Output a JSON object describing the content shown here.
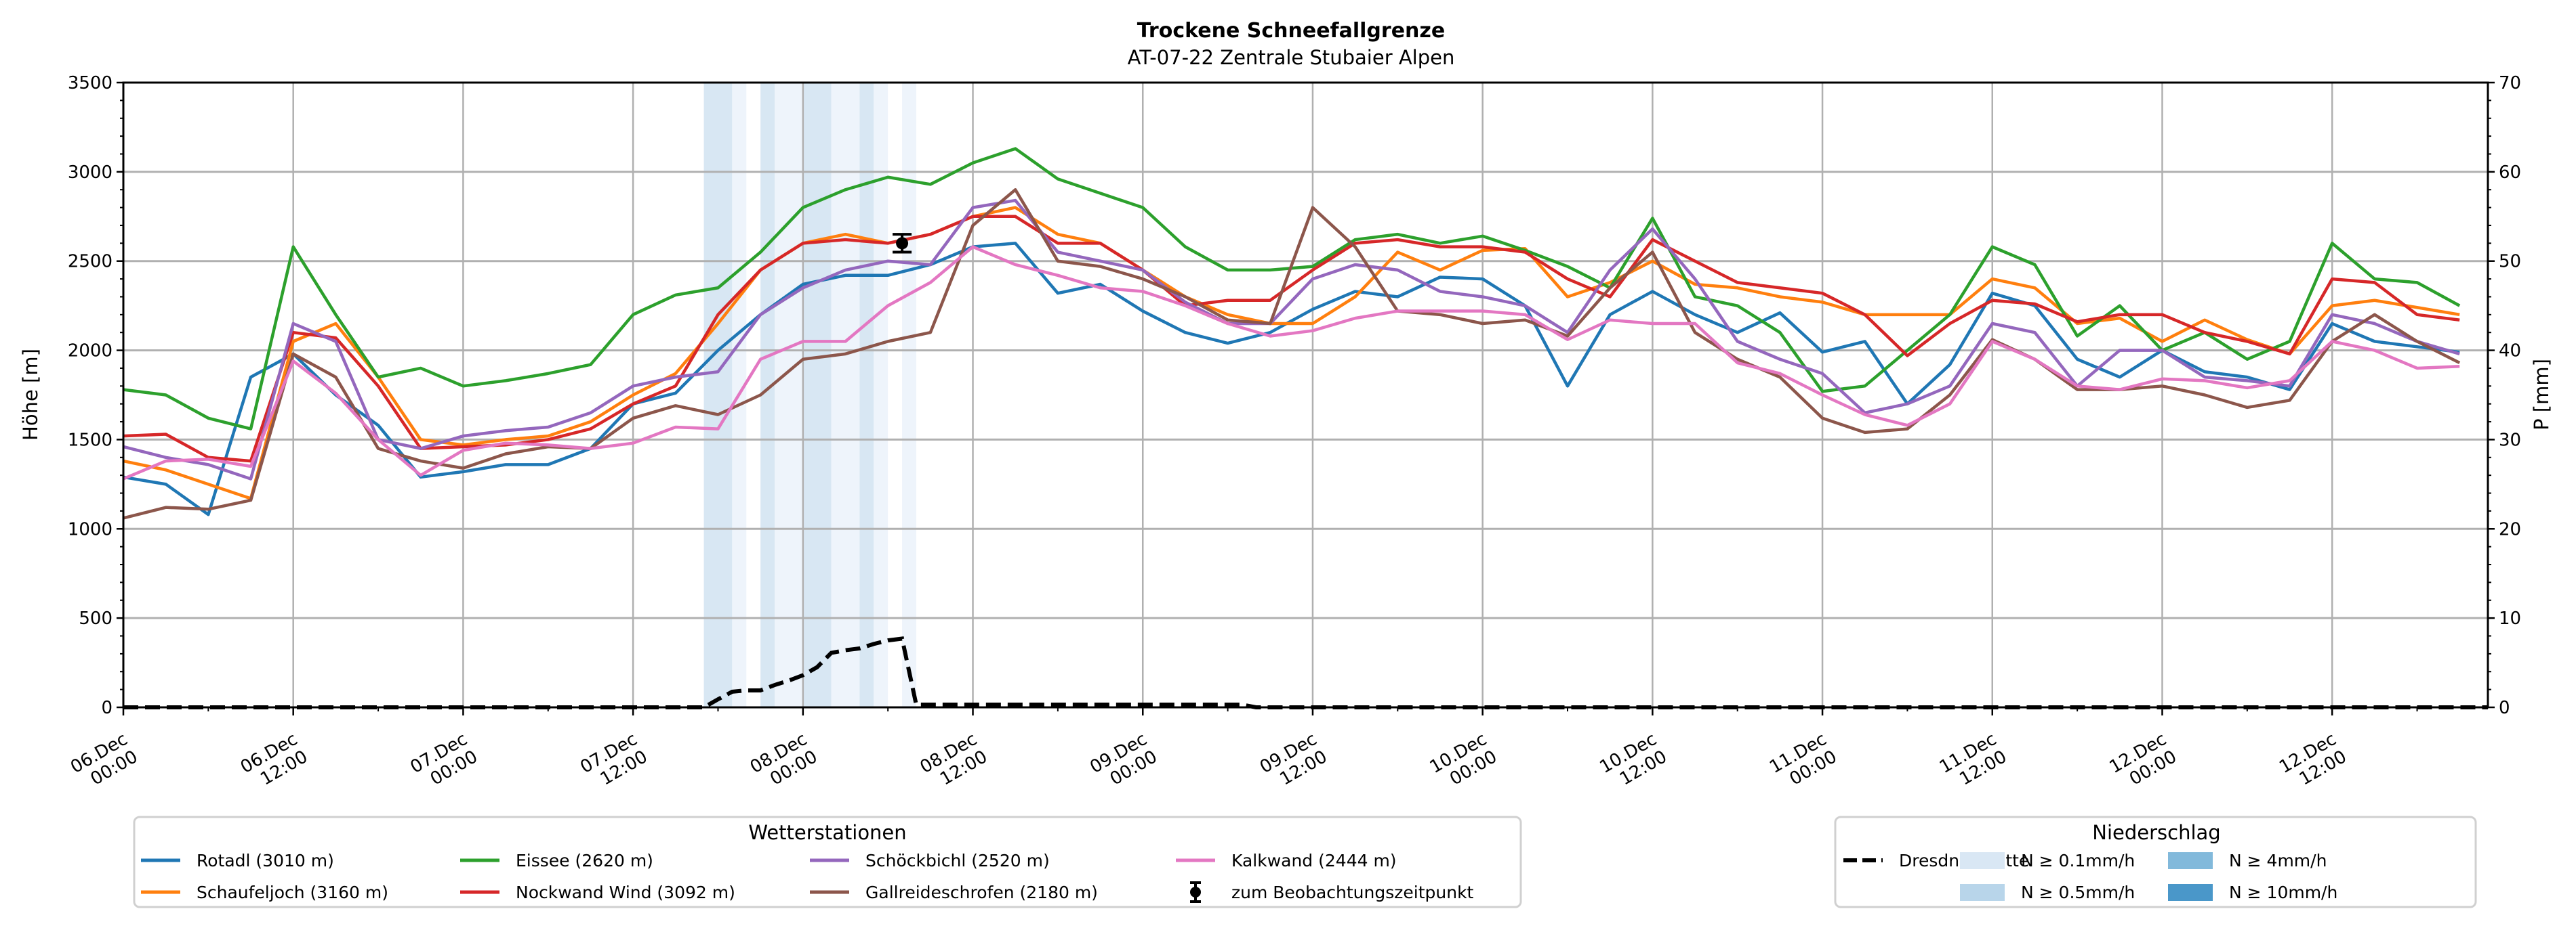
{
  "chart_data": {
    "type": "line",
    "title": "Trockene Schneefallgrenze",
    "subtitle": "AT-07-22 Zentrale Stubaier Alpen",
    "xlabel": "",
    "ylabel": "Höhe [m]",
    "y2label": "P [mm]",
    "ylim": [
      0,
      3500
    ],
    "y2lim": [
      0,
      70
    ],
    "yticks": [
      0,
      500,
      1000,
      1500,
      2000,
      2500,
      3000,
      3500
    ],
    "y2ticks": [
      0,
      10,
      20,
      30,
      40,
      50,
      60,
      70
    ],
    "grid": true,
    "x_unit": "hours since 06.Dec 00:00",
    "xlim": [
      0,
      167
    ],
    "x_step_hours": 3,
    "xticks": [
      {
        "hour": 0,
        "date": "06.Dec",
        "time": "00:00"
      },
      {
        "hour": 12,
        "date": "06.Dec",
        "time": "12:00"
      },
      {
        "hour": 24,
        "date": "07.Dec",
        "time": "00:00"
      },
      {
        "hour": 36,
        "date": "07.Dec",
        "time": "12:00"
      },
      {
        "hour": 48,
        "date": "08.Dec",
        "time": "00:00"
      },
      {
        "hour": 60,
        "date": "08.Dec",
        "time": "12:00"
      },
      {
        "hour": 72,
        "date": "09.Dec",
        "time": "00:00"
      },
      {
        "hour": 84,
        "date": "09.Dec",
        "time": "12:00"
      },
      {
        "hour": 96,
        "date": "10.Dec",
        "time": "00:00"
      },
      {
        "hour": 108,
        "date": "10.Dec",
        "time": "12:00"
      },
      {
        "hour": 120,
        "date": "11.Dec",
        "time": "00:00"
      },
      {
        "hour": 132,
        "date": "11.Dec",
        "time": "12:00"
      },
      {
        "hour": 144,
        "date": "12.Dec",
        "time": "00:00"
      },
      {
        "hour": 156,
        "date": "12.Dec",
        "time": "12:00"
      }
    ],
    "series": [
      {
        "name": "Rotadl (3010 m)",
        "color": "#1f77b4",
        "values": [
          1290,
          1250,
          1080,
          1850,
          1980,
          1750,
          1580,
          1290,
          1320,
          1360,
          1360,
          1450,
          1700,
          1760,
          2000,
          2200,
          2370,
          2420,
          2420,
          2480,
          2580,
          2600,
          2320,
          2370,
          2220,
          2100,
          2040,
          2100,
          2230,
          2330,
          2300,
          2410,
          2400,
          2250,
          1800,
          2200,
          2330,
          2200,
          2100,
          2210,
          1990,
          2050,
          1700,
          1920,
          2320,
          2250,
          1950,
          1850,
          2000,
          1880,
          1850,
          1780,
          2150,
          2050,
          2020,
          1990
        ]
      },
      {
        "name": "Schaufeljoch (3160 m)",
        "color": "#ff7f0e",
        "values": [
          1380,
          1330,
          1250,
          1170,
          2050,
          2150,
          1850,
          1500,
          1470,
          1500,
          1520,
          1600,
          1750,
          1870,
          2150,
          2450,
          2600,
          2650,
          2600,
          2650,
          2750,
          2800,
          2650,
          2600,
          2450,
          2300,
          2200,
          2150,
          2150,
          2300,
          2550,
          2450,
          2560,
          2570,
          2300,
          2380,
          2500,
          2370,
          2350,
          2300,
          2270,
          2200,
          2200,
          2200,
          2400,
          2350,
          2150,
          2180,
          2050,
          2170,
          2060,
          1980,
          2250,
          2280,
          2240,
          2200
        ]
      },
      {
        "name": "Eissee (2620 m)",
        "color": "#2ca02c",
        "values": [
          1780,
          1750,
          1620,
          1560,
          2580,
          2200,
          1850,
          1900,
          1800,
          1830,
          1870,
          1920,
          2200,
          2310,
          2350,
          2550,
          2800,
          2900,
          2970,
          2930,
          3050,
          3130,
          2960,
          2880,
          2800,
          2580,
          2450,
          2450,
          2470,
          2620,
          2650,
          2600,
          2640,
          2560,
          2470,
          2350,
          2740,
          2300,
          2250,
          2100,
          1770,
          1800,
          2000,
          2200,
          2580,
          2480,
          2080,
          2250,
          2000,
          2100,
          1950,
          2050,
          2600,
          2400,
          2380,
          2250
        ]
      },
      {
        "name": "Nockwand Wind (3092 m)",
        "color": "#d62728",
        "values": [
          1520,
          1530,
          1400,
          1380,
          2100,
          2070,
          1800,
          1450,
          1460,
          1470,
          1500,
          1560,
          1700,
          1800,
          2200,
          2450,
          2600,
          2620,
          2600,
          2650,
          2750,
          2750,
          2600,
          2600,
          2450,
          2250,
          2280,
          2280,
          2450,
          2600,
          2620,
          2580,
          2580,
          2550,
          2400,
          2300,
          2620,
          2500,
          2380,
          2350,
          2320,
          2200,
          1970,
          2150,
          2280,
          2260,
          2160,
          2200,
          2200,
          2100,
          2050,
          1980,
          2400,
          2380,
          2200,
          2170
        ]
      },
      {
        "name": "Schöckbichl (2520 m)",
        "color": "#9467bd",
        "values": [
          1460,
          1400,
          1360,
          1280,
          2150,
          2050,
          1500,
          1450,
          1520,
          1550,
          1570,
          1650,
          1800,
          1850,
          1880,
          2200,
          2350,
          2450,
          2500,
          2480,
          2800,
          2840,
          2550,
          2500,
          2450,
          2270,
          2150,
          2150,
          2400,
          2480,
          2450,
          2330,
          2300,
          2250,
          2100,
          2450,
          2680,
          2400,
          2050,
          1950,
          1870,
          1650,
          1700,
          1800,
          2150,
          2100,
          1800,
          2000,
          2000,
          1850,
          1830,
          1800,
          2200,
          2150,
          2050,
          1980
        ]
      },
      {
        "name": "Gallreideschrofen (2180 m)",
        "color": "#8c564b",
        "values": [
          1060,
          1120,
          1110,
          1160,
          1980,
          1850,
          1450,
          1380,
          1340,
          1420,
          1460,
          1450,
          1620,
          1690,
          1640,
          1750,
          1950,
          1980,
          2050,
          2100,
          2700,
          2900,
          2500,
          2470,
          2400,
          2300,
          2170,
          2150,
          2800,
          2580,
          2220,
          2200,
          2150,
          2170,
          2080,
          2350,
          2550,
          2100,
          1950,
          1850,
          1620,
          1540,
          1560,
          1750,
          2060,
          1950,
          1780,
          1780,
          1800,
          1750,
          1680,
          1720,
          2050,
          2200,
          2050,
          1930
        ]
      },
      {
        "name": "Kalkwand (2444 m)",
        "color": "#e377c2",
        "values": [
          1280,
          1380,
          1390,
          1350,
          1940,
          1760,
          1500,
          1300,
          1440,
          1480,
          1470,
          1450,
          1480,
          1570,
          1560,
          1950,
          2050,
          2050,
          2250,
          2380,
          2580,
          2480,
          2420,
          2350,
          2330,
          2250,
          2150,
          2080,
          2110,
          2180,
          2220,
          2220,
          2220,
          2200,
          2060,
          2170,
          2150,
          2150,
          1930,
          1870,
          1750,
          1640,
          1580,
          1700,
          2050,
          1950,
          1800,
          1780,
          1840,
          1830,
          1790,
          1830,
          2050,
          2000,
          1900,
          1910
        ]
      }
    ],
    "precipitation": {
      "name": "Dresdner Hütte",
      "axis": "right",
      "unit": "mm",
      "points": [
        [
          0,
          0
        ],
        [
          41,
          0
        ],
        [
          42,
          0.9
        ],
        [
          43,
          1.75
        ],
        [
          44,
          1.9
        ],
        [
          45,
          1.9
        ],
        [
          46,
          2.5
        ],
        [
          47,
          3.0
        ],
        [
          48,
          3.6
        ],
        [
          49,
          4.5
        ],
        [
          50,
          6.1
        ],
        [
          51,
          6.4
        ],
        [
          52,
          6.6
        ],
        [
          53,
          7.1
        ],
        [
          54,
          7.5
        ],
        [
          55,
          7.7
        ],
        [
          56,
          0.3
        ],
        [
          79,
          0.3
        ],
        [
          80,
          0
        ],
        [
          167,
          0
        ]
      ]
    },
    "precip_bands": [
      {
        "start": 41,
        "end": 43,
        "level": "N ≥ 0.1mm/h"
      },
      {
        "start": 43,
        "end": 44,
        "level": "trace"
      },
      {
        "start": 45,
        "end": 46,
        "level": "N ≥ 0.1mm/h"
      },
      {
        "start": 46,
        "end": 48,
        "level": "trace"
      },
      {
        "start": 48,
        "end": 50,
        "level": "N ≥ 0.1mm/h"
      },
      {
        "start": 50,
        "end": 52,
        "level": "trace"
      },
      {
        "start": 52,
        "end": 53,
        "level": "N ≥ 0.1mm/h"
      },
      {
        "start": 53,
        "end": 54,
        "level": "trace"
      },
      {
        "start": 55,
        "end": 56,
        "level": "trace"
      }
    ],
    "band_colors": {
      "N ≥ 0.1mm/h": "#d8e7f3",
      "trace": "#eef4fb"
    },
    "observation": {
      "label": "zum Beobachtungszeitpunkt",
      "hour": 55,
      "value": 2600,
      "low": 2550,
      "high": 2650
    },
    "legend_stations": {
      "title": "Wetterstationen",
      "placement": "bottom-left"
    },
    "legend_precip": {
      "title": "Niederschlag",
      "placement": "bottom-right",
      "classes": [
        {
          "label": "N ≥ 0.1mm/h",
          "color": "#d9e7f4"
        },
        {
          "label": "N ≥ 0.5mm/h",
          "color": "#b8d5ea"
        },
        {
          "label": "N ≥ 4mm/h",
          "color": "#82b9db"
        },
        {
          "label": "N ≥ 10mm/h",
          "color": "#4a97c9"
        }
      ]
    }
  }
}
